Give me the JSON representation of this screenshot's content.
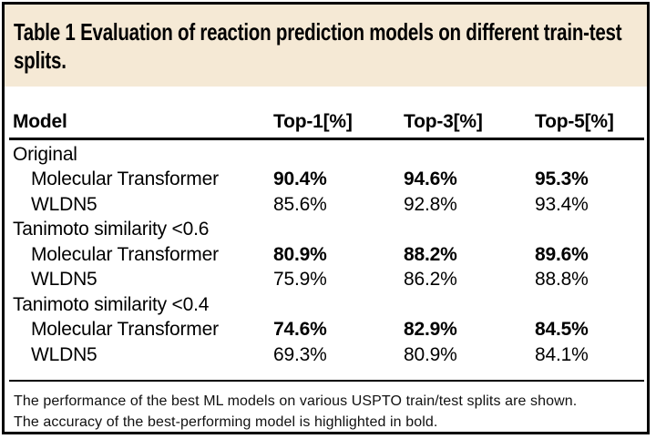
{
  "title": "Table 1 Evaluation of reaction prediction models on different train-test splits.",
  "table": {
    "columns": [
      "Model",
      "Top-1[%]",
      "Top-3[%]",
      "Top-5[%]"
    ],
    "rows": [
      {
        "label": "Original",
        "type": "group",
        "bold": false,
        "values": null
      },
      {
        "label": "Molecular Transformer",
        "type": "model",
        "bold": true,
        "values": [
          "90.4%",
          "94.6%",
          "95.3%"
        ]
      },
      {
        "label": "WLDN5",
        "type": "model",
        "bold": false,
        "values": [
          "85.6%",
          "92.8%",
          "93.4%"
        ]
      },
      {
        "label": "Tanimoto similarity <0.6",
        "type": "group",
        "bold": false,
        "values": null
      },
      {
        "label": "Molecular Transformer",
        "type": "model",
        "bold": true,
        "values": [
          "80.9%",
          "88.2%",
          "89.6%"
        ]
      },
      {
        "label": "WLDN5",
        "type": "model",
        "bold": false,
        "values": [
          "75.9%",
          "86.2%",
          "88.8%"
        ]
      },
      {
        "label": "Tanimoto similarity <0.4",
        "type": "group",
        "bold": false,
        "values": null
      },
      {
        "label": "Molecular Transformer",
        "type": "model",
        "bold": true,
        "values": [
          "74.6%",
          "82.9%",
          "84.5%"
        ]
      },
      {
        "label": "WLDN5",
        "type": "model",
        "bold": false,
        "values": [
          "69.3%",
          "80.9%",
          "84.1%"
        ]
      }
    ]
  },
  "footnote": {
    "line1": "The performance of the best ML models on various USPTO train/test splits are shown.",
    "line2": "The accuracy of the best-performing model is highlighted in bold."
  },
  "colors": {
    "title_band": "#F5E9D5",
    "border": "#000000",
    "text": "#000000"
  }
}
